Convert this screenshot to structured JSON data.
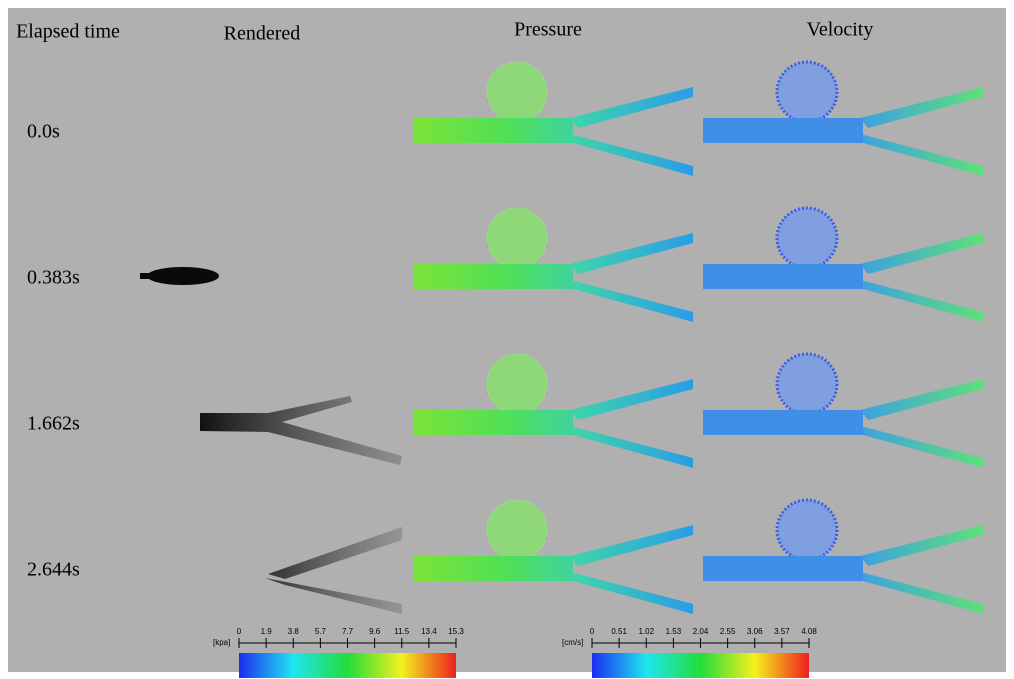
{
  "header": {
    "columns": [
      "Elapsed time",
      "Rendered",
      "Pressure",
      "Velocity"
    ]
  },
  "rows": [
    "0.0s",
    "0.383s",
    "1.662s",
    "2.644s"
  ],
  "colorbars": [
    {
      "unit": "[kpa]",
      "ticks": [
        "0",
        "1.9",
        "3.8",
        "5.7",
        "7.7",
        "9.6",
        "11.5",
        "13.4",
        "15.3"
      ]
    },
    {
      "unit": "[cm/s]",
      "ticks": [
        "0",
        "0.51",
        "1.02",
        "1.53",
        "2.04",
        "2.55",
        "3.06",
        "3.57",
        "4.08"
      ]
    }
  ]
}
